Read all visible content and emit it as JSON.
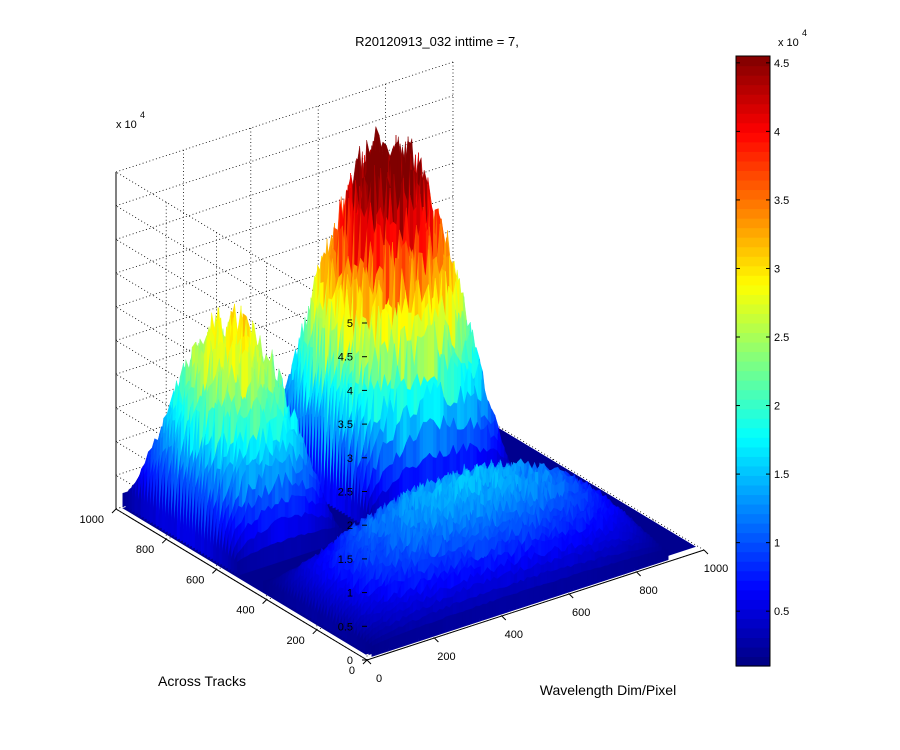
{
  "chart_data": {
    "type": "surface3d",
    "title": "R20120913_032 inttime = 7,",
    "xlabel": "Wavelength Dim/Pixel",
    "ylabel": "Across Tracks",
    "zlabel": "",
    "x_ticks": [
      "0",
      "200",
      "400",
      "600",
      "800",
      "1000"
    ],
    "y_ticks": [
      "0",
      "200",
      "400",
      "600",
      "800",
      "1000"
    ],
    "z_ticks": [
      "0",
      "0.5",
      "1",
      "1.5",
      "2",
      "2.5",
      "3",
      "3.5",
      "4",
      "4.5",
      "5"
    ],
    "z_multiplier": "x 10",
    "z_multiplier_exp": "4",
    "xlim": [
      0,
      1000
    ],
    "ylim": [
      0,
      1000
    ],
    "zlim": [
      0,
      50000
    ],
    "grid": true,
    "colormap": "jet",
    "colorbar": {
      "ticks": [
        "0.5",
        "1",
        "1.5",
        "2",
        "2.5",
        "3",
        "3.5",
        "4",
        "4.5"
      ],
      "multiplier": "x 10",
      "multiplier_exp": "4",
      "range": [
        1000,
        45500
      ]
    },
    "bands": [
      {
        "name": "",
        "y_range": [
          540,
          1000
        ],
        "segments": [
          {
            "x_start": 20,
            "x_end": 330,
            "peak": 29000,
            "floor": 2000
          },
          {
            "x_start": 420,
            "x_end": 850,
            "peak": 46000,
            "floor": 2000
          }
        ]
      },
      {
        "name": "",
        "y_range": [
          0,
          440
        ],
        "segments": [
          {
            "x_start": 20,
            "x_end": 900,
            "peak": 14000,
            "floor": 1500
          }
        ]
      }
    ]
  }
}
